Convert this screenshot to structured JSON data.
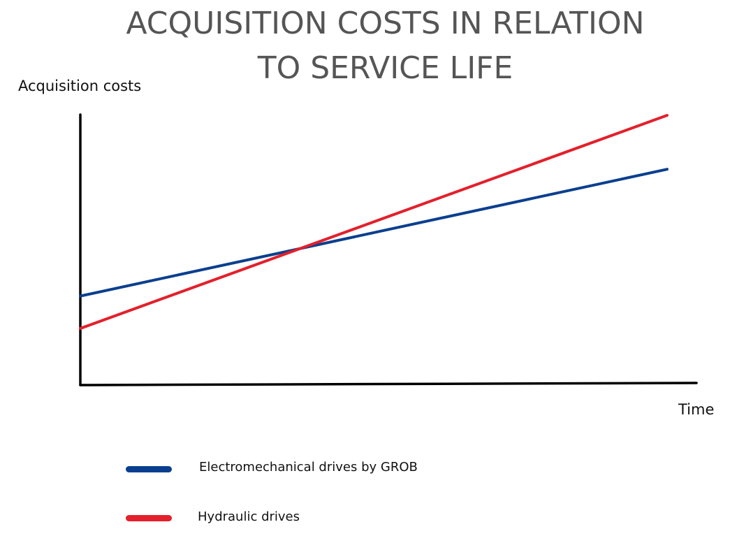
{
  "chart_data": {
    "type": "line",
    "title": "ACQUISITION COSTS IN RELATION TO SERVICE LIFE",
    "title_lines": [
      "ACQUISITION COSTS IN RELATION",
      "TO SERVICE LIFE"
    ],
    "xlabel": "Time",
    "ylabel": "Acquisition costs",
    "x": [
      0,
      10
    ],
    "xlim": [
      0,
      10.5
    ],
    "ylim": [
      0,
      10
    ],
    "grid": false,
    "legend_placement": "bottom-left",
    "series": [
      {
        "name": "Electromechanical drives by GROB",
        "color": "#0a3f8f",
        "values": [
          3.3,
          8.0
        ]
      },
      {
        "name": "Hydraulic drives",
        "color": "#e3202b",
        "values": [
          2.1,
          10.0
        ]
      }
    ]
  }
}
